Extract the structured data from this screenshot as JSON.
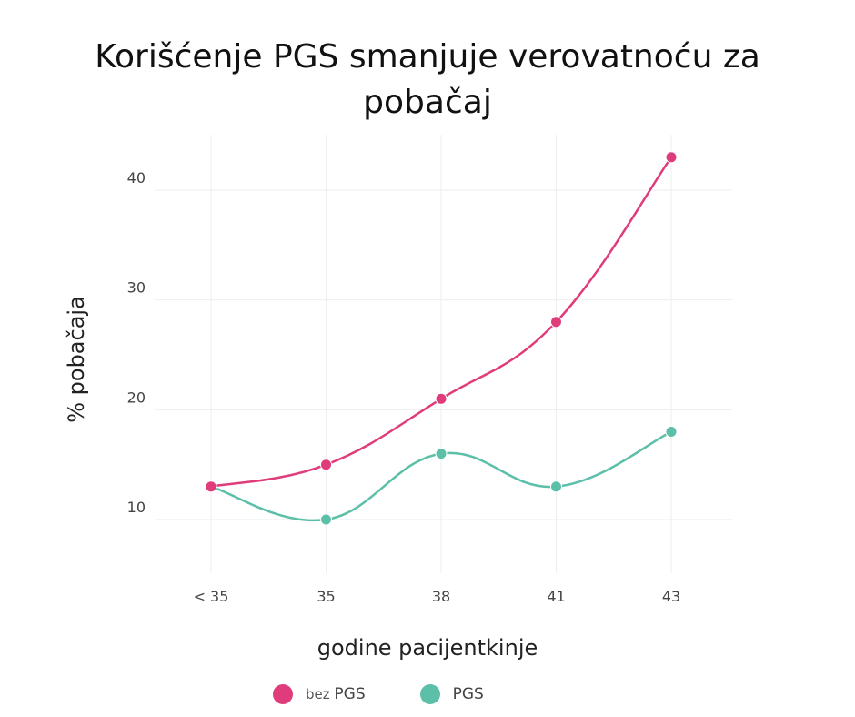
{
  "title_lines": [
    "Korišćenje PGS smanjuje verovatnoću za",
    "pobačaj"
  ],
  "chart_data": {
    "type": "line",
    "title": "Korišćenje PGS smanjuje verovatnoću za pobačaj",
    "xlabel": "godine pacijentkinje",
    "ylabel": "% pobačaja",
    "categories": [
      "< 35",
      "35",
      "38",
      "41",
      "43"
    ],
    "yticks": [
      10,
      20,
      30,
      40
    ],
    "ylim": [
      5,
      46
    ],
    "grid": true,
    "legend_position": "bottom-center",
    "series": [
      {
        "name": "bez PGS",
        "color": "#e03c7b",
        "values": [
          13,
          15,
          21,
          28,
          43
        ]
      },
      {
        "name": "PGS",
        "color": "#5cbfa8",
        "values": [
          13,
          10,
          16,
          13,
          18
        ]
      }
    ]
  },
  "legend": [
    {
      "prefix": "bez ",
      "label": "PGS",
      "color": "#e03c7b"
    },
    {
      "prefix": "",
      "label": "PGS",
      "color": "#5cbfa8"
    }
  ]
}
